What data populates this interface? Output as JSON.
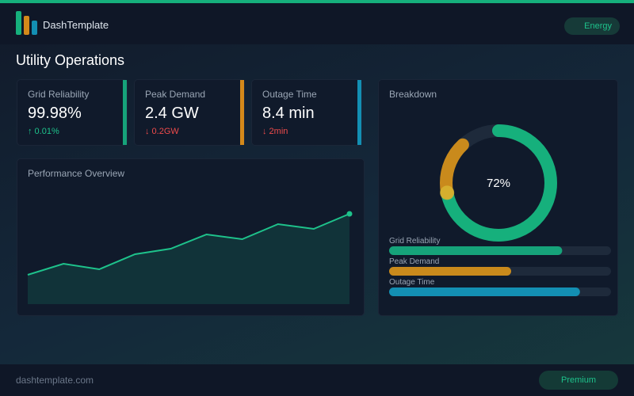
{
  "header": {
    "brand": "DashTemplate",
    "filter": "Energy"
  },
  "page_title": "Utility Operations",
  "kpis": [
    {
      "label": "Grid Reliability",
      "value": "99.98%",
      "delta": "↑ 0.01%",
      "color": "#16a37a",
      "delta_color": "#1ec28b"
    },
    {
      "label": "Peak Demand",
      "value": "2.4 GW",
      "delta": "↓ 0.2GW",
      "color": "#d4891a",
      "delta_color": "#ef4b4b"
    },
    {
      "label": "Outage Time",
      "value": "8.4 min",
      "delta": "↓ 2min",
      "color": "#138fb3",
      "delta_color": "#ef4b4b"
    }
  ],
  "chart_data": [
    {
      "type": "area",
      "title": "Performance Overview",
      "x": [
        0,
        1,
        2,
        3,
        4,
        5,
        6,
        7,
        8,
        9
      ],
      "xlim": [
        0,
        9
      ],
      "values": [
        37,
        51,
        44,
        63,
        70,
        88,
        82,
        101,
        95,
        114
      ],
      "ylim": [
        0,
        133
      ],
      "color": "#1ec28b"
    },
    {
      "type": "donut",
      "title": "Breakdown",
      "segments": [
        {
          "value": 72,
          "label": "72%",
          "color": "#16b07c"
        },
        {
          "value": 16,
          "color": "#c98a1c"
        }
      ],
      "track_color": "#1e2a3b",
      "bars": {
        "categories": [
          "Grid Reliability",
          "Peak Demand",
          "Outage Time"
        ],
        "values": [
          78,
          55,
          86
        ],
        "max": 100,
        "colors": [
          "#16a37a",
          "#c98a1c",
          "#138fb3"
        ]
      }
    }
  ],
  "footer": {
    "site": "dashtemplate.com",
    "button": "Premium"
  }
}
